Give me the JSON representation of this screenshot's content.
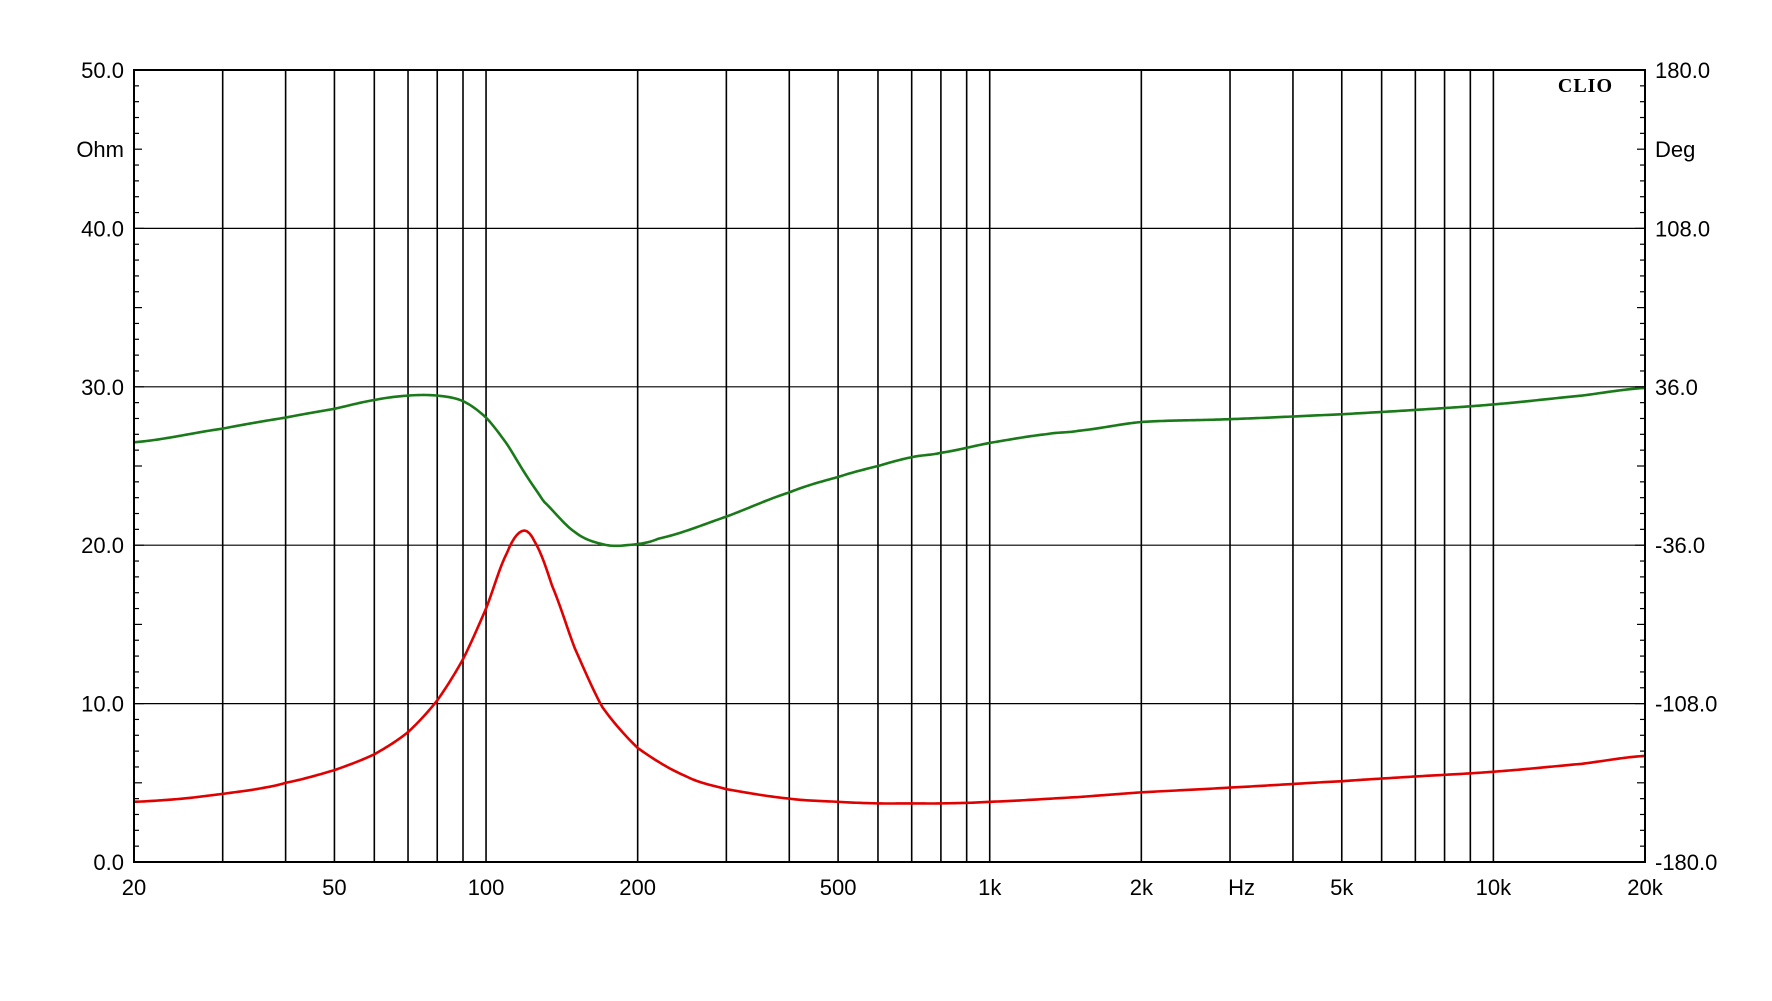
{
  "chart_data": {
    "type": "line",
    "brand": "CLIO",
    "x_scale": "log",
    "xlim": [
      20,
      20000
    ],
    "x_axis_label": "Hz",
    "x_tick_labels": [
      {
        "value": 20,
        "label": "20"
      },
      {
        "value": 50,
        "label": "50"
      },
      {
        "value": 100,
        "label": "100"
      },
      {
        "value": 200,
        "label": "200"
      },
      {
        "value": 500,
        "label": "500"
      },
      {
        "value": 1000,
        "label": "1k"
      },
      {
        "value": 2000,
        "label": "2k"
      },
      {
        "value": 5000,
        "label": "5k"
      },
      {
        "value": 10000,
        "label": "10k"
      },
      {
        "value": 20000,
        "label": "20k"
      }
    ],
    "left_axis": {
      "unit": "Ohm",
      "ylim": [
        0,
        50
      ],
      "tick_labels": [
        "0.0",
        "10.0",
        "20.0",
        "30.0",
        "40.0",
        "50.0"
      ]
    },
    "right_axis": {
      "unit": "Deg",
      "ylim": [
        -180,
        180
      ],
      "tick_labels": [
        "-180.0",
        "-108.0",
        "-36.0",
        "36.0",
        "108.0",
        "180.0"
      ]
    },
    "grid": true,
    "series": [
      {
        "axis": "left",
        "color": "#e00000",
        "points": [
          [
            20,
            3.8
          ],
          [
            25,
            4.0
          ],
          [
            30,
            4.3
          ],
          [
            35,
            4.6
          ],
          [
            40,
            5.0
          ],
          [
            50,
            5.8
          ],
          [
            60,
            6.8
          ],
          [
            70,
            8.2
          ],
          [
            80,
            10.2
          ],
          [
            90,
            12.8
          ],
          [
            100,
            16.0
          ],
          [
            110,
            19.5
          ],
          [
            118,
            20.9
          ],
          [
            125,
            20.2
          ],
          [
            135,
            17.5
          ],
          [
            150,
            13.5
          ],
          [
            170,
            9.8
          ],
          [
            200,
            7.2
          ],
          [
            250,
            5.4
          ],
          [
            300,
            4.6
          ],
          [
            400,
            4.0
          ],
          [
            500,
            3.8
          ],
          [
            600,
            3.7
          ],
          [
            700,
            3.7
          ],
          [
            800,
            3.7
          ],
          [
            1000,
            3.8
          ],
          [
            1500,
            4.1
          ],
          [
            2000,
            4.4
          ],
          [
            3000,
            4.7
          ],
          [
            5000,
            5.1
          ],
          [
            7000,
            5.4
          ],
          [
            10000,
            5.7
          ],
          [
            15000,
            6.2
          ],
          [
            20000,
            6.7
          ]
        ]
      },
      {
        "axis": "right",
        "color": "#1a7a1a",
        "points": [
          [
            20,
            10.8
          ],
          [
            30,
            17
          ],
          [
            40,
            22
          ],
          [
            50,
            26
          ],
          [
            60,
            30
          ],
          [
            70,
            32
          ],
          [
            80,
            32
          ],
          [
            90,
            29.5
          ],
          [
            100,
            22
          ],
          [
            110,
            10
          ],
          [
            120,
            -4
          ],
          [
            130,
            -16
          ],
          [
            150,
            -30
          ],
          [
            170,
            -35.5
          ],
          [
            190,
            -36
          ],
          [
            220,
            -33
          ],
          [
            300,
            -23
          ],
          [
            400,
            -12
          ],
          [
            500,
            -5
          ],
          [
            600,
            0
          ],
          [
            700,
            4
          ],
          [
            800,
            6
          ],
          [
            1000,
            10.5
          ],
          [
            1300,
            14.5
          ],
          [
            1500,
            16
          ],
          [
            2000,
            20
          ],
          [
            3000,
            21.3
          ],
          [
            5000,
            23.5
          ],
          [
            7000,
            25.5
          ],
          [
            10000,
            28
          ],
          [
            15000,
            32
          ],
          [
            20000,
            35.5
          ]
        ]
      }
    ]
  }
}
